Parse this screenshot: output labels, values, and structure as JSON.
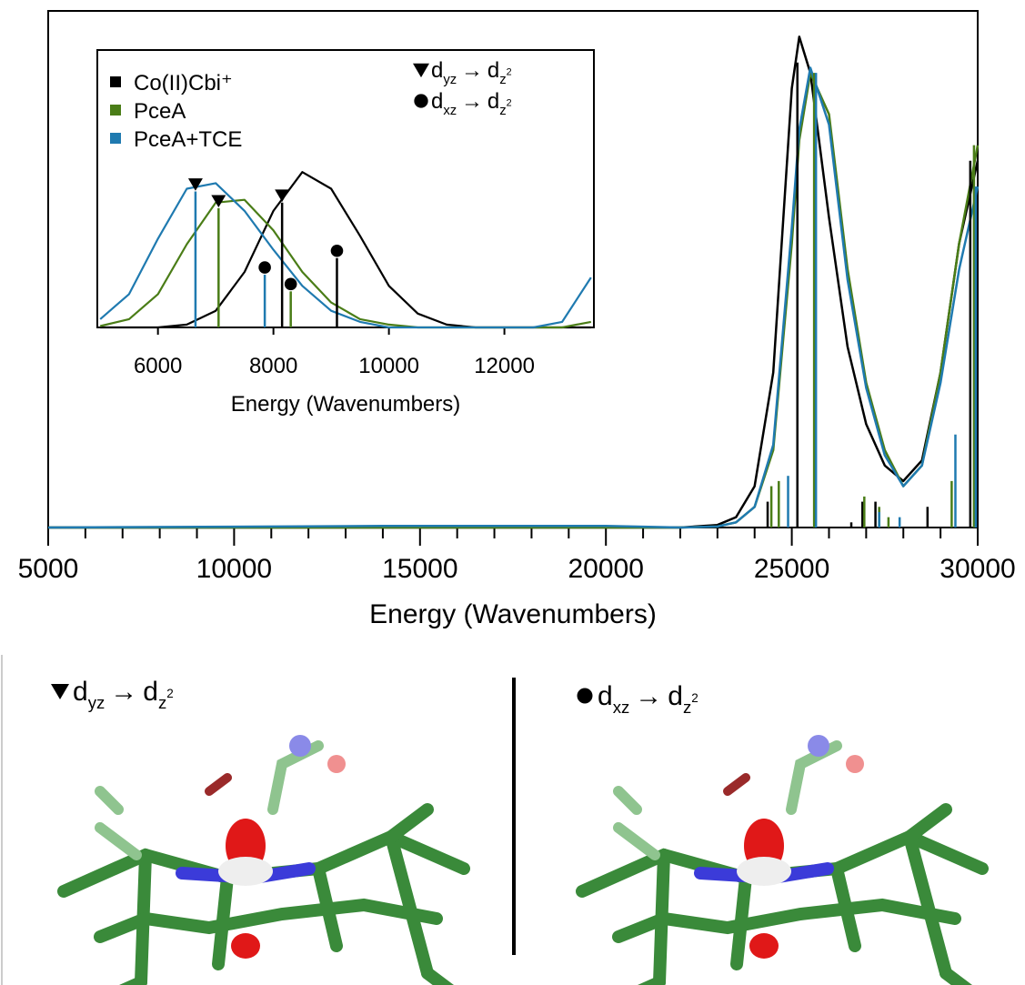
{
  "chart_data": [
    {
      "type": "line",
      "xlabel": "Energy (Wavenumbers)",
      "xlim": [
        5000,
        30000
      ],
      "ylim": [
        0,
        1
      ],
      "xticks": [
        5000,
        10000,
        15000,
        20000,
        25000,
        30000
      ],
      "xminorticks": [
        6000,
        7000,
        8000,
        9000,
        11000,
        12000,
        13000,
        14000,
        16000,
        17000,
        18000,
        19000,
        21000,
        22000,
        23000,
        24000,
        26000,
        27000,
        28000,
        29000
      ],
      "series": [
        {
          "color": "#000000",
          "x": [
            5000,
            14000,
            20000,
            22000,
            23000,
            23500,
            24000,
            24500,
            25000,
            25200,
            25500,
            26000,
            26500,
            27000,
            27500,
            28000,
            28500,
            29000,
            29500,
            30000
          ],
          "values": [
            0,
            0,
            0,
            0,
            0.005,
            0.02,
            0.08,
            0.3,
            0.85,
            0.95,
            0.88,
            0.6,
            0.35,
            0.2,
            0.12,
            0.09,
            0.13,
            0.3,
            0.55,
            0.71
          ]
        },
        {
          "color": "#4a7d17",
          "x": [
            5000,
            14000,
            20000,
            22000,
            23000,
            23500,
            24000,
            24500,
            25000,
            25200,
            25500,
            26000,
            26500,
            27000,
            27500,
            28000,
            28500,
            29000,
            29500,
            30000
          ],
          "values": [
            0,
            0,
            0,
            0,
            0.002,
            0.01,
            0.04,
            0.15,
            0.55,
            0.75,
            0.88,
            0.8,
            0.5,
            0.28,
            0.15,
            0.08,
            0.12,
            0.3,
            0.55,
            0.74
          ]
        },
        {
          "color": "#1f7ab0",
          "x": [
            5000,
            14000,
            20000,
            22000,
            23000,
            23500,
            24000,
            24500,
            25000,
            25200,
            25500,
            26000,
            26500,
            27000,
            27500,
            28000,
            28500,
            29000,
            29500,
            30000
          ],
          "values": [
            0,
            0.003,
            0.003,
            0,
            0.002,
            0.01,
            0.04,
            0.16,
            0.58,
            0.77,
            0.89,
            0.78,
            0.48,
            0.27,
            0.14,
            0.08,
            0.12,
            0.28,
            0.5,
            0.66
          ]
        }
      ],
      "sticks": [
        {
          "color": "#000000",
          "x": [
            24350,
            25150,
            26600,
            26900,
            27250,
            28650,
            29800
          ],
          "values": [
            0.05,
            0.9,
            0.01,
            0.05,
            0.05,
            0.04,
            0.71
          ]
        },
        {
          "color": "#4a7d17",
          "x": [
            24450,
            24650,
            25600,
            26950,
            27350,
            27600,
            29300,
            29900
          ],
          "values": [
            0.08,
            0.09,
            0.88,
            0.06,
            0.04,
            0.02,
            0.09,
            0.74
          ]
        },
        {
          "color": "#1f7ab0",
          "x": [
            24900,
            25650,
            27350,
            27900,
            29400,
            29950
          ],
          "values": [
            0.1,
            0.88,
            0.03,
            0.02,
            0.18,
            0.66
          ]
        }
      ]
    },
    {
      "type": "line",
      "xlabel": "Energy (Wavenumbers)",
      "xlim": [
        4950,
        13550
      ],
      "ylim": [
        0,
        1
      ],
      "xticks": [
        6000,
        8000,
        10000,
        12000
      ],
      "legend": "upper left",
      "series": [
        {
          "name": "Co(II)Cbi⁺",
          "color": "#000000",
          "x": [
            5000,
            5500,
            6000,
            6500,
            7000,
            7500,
            8000,
            8500,
            9000,
            9500,
            10000,
            10500,
            11000,
            11500,
            12000,
            12500,
            13000,
            13500
          ],
          "values": [
            0,
            0,
            0,
            0.01,
            0.06,
            0.2,
            0.42,
            0.56,
            0.5,
            0.33,
            0.15,
            0.05,
            0.01,
            0,
            0,
            0,
            0,
            0
          ]
        },
        {
          "name": "PceA",
          "color": "#4a7d17",
          "x": [
            5000,
            5500,
            6000,
            6500,
            7000,
            7500,
            8000,
            8500,
            9000,
            9500,
            10000,
            10500,
            11000,
            11500,
            12000,
            12500,
            13000,
            13500
          ],
          "values": [
            0.005,
            0.03,
            0.12,
            0.3,
            0.45,
            0.46,
            0.35,
            0.2,
            0.09,
            0.03,
            0.01,
            0,
            0,
            0,
            0,
            0,
            0,
            0.02
          ]
        },
        {
          "name": "PceA+TCE",
          "color": "#1f7ab0",
          "x": [
            5000,
            5500,
            6000,
            6500,
            7000,
            7500,
            8000,
            8500,
            9000,
            9500,
            10000,
            10500,
            11000,
            11500,
            12000,
            12500,
            13000,
            13500
          ],
          "values": [
            0.03,
            0.12,
            0.32,
            0.5,
            0.52,
            0.42,
            0.28,
            0.15,
            0.06,
            0.02,
            0,
            0,
            0,
            0,
            0,
            0,
            0.02,
            0.18
          ]
        }
      ],
      "sticks": [
        {
          "color": "#000000",
          "x": [
            8150,
            9100
          ],
          "values": [
            0.45,
            0.25
          ],
          "markers": [
            "triangle",
            "circle"
          ]
        },
        {
          "color": "#4a7d17",
          "x": [
            7050,
            8300
          ],
          "values": [
            0.43,
            0.13
          ],
          "markers": [
            "triangle",
            "circle"
          ]
        },
        {
          "color": "#1f7ab0",
          "x": [
            6650,
            7850
          ],
          "values": [
            0.49,
            0.19
          ],
          "markers": [
            "triangle",
            "circle"
          ]
        }
      ],
      "annotations": [
        {
          "marker": "triangle",
          "text": [
            "d",
            "yz",
            "→",
            "d",
            "z",
            "2"
          ]
        },
        {
          "marker": "circle",
          "text": [
            "d",
            "xz",
            "→",
            "d",
            "z",
            "2"
          ]
        }
      ]
    }
  ],
  "panels": [
    {
      "marker": "triangle",
      "label": [
        "d",
        "yz",
        "→",
        "d",
        "z",
        "2"
      ]
    },
    {
      "marker": "circle",
      "label": [
        "d",
        "xz",
        "→",
        "d",
        "z",
        "2"
      ]
    }
  ]
}
